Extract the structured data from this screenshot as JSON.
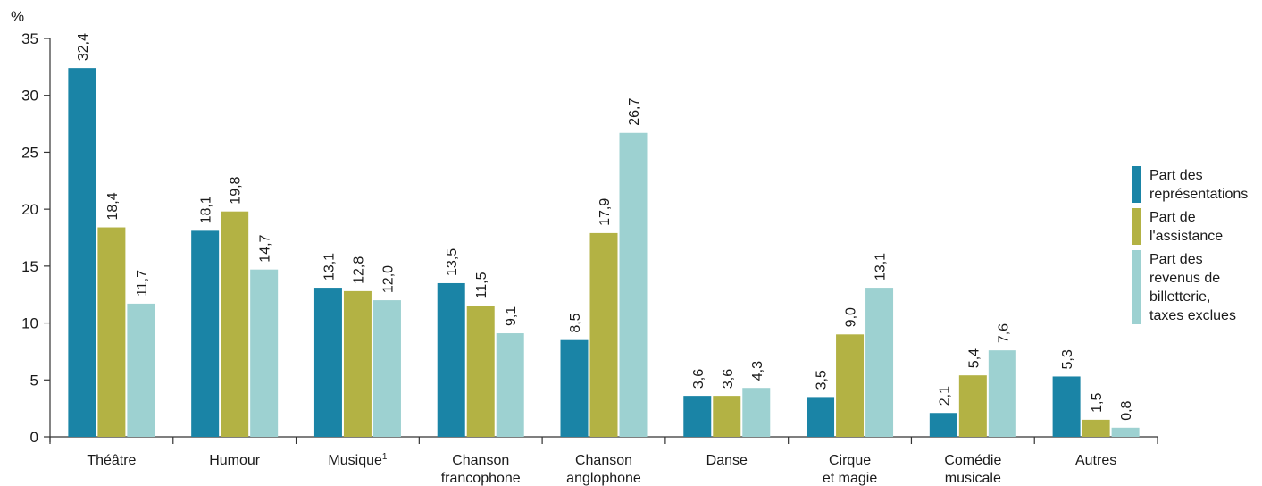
{
  "chart_data": {
    "type": "bar",
    "ylabel": "%",
    "ylim": [
      0,
      35
    ],
    "yticks": [
      0,
      5,
      10,
      15,
      20,
      25,
      30,
      35
    ],
    "grid": false,
    "legend_position": "right",
    "categories": [
      [
        "Théâtre"
      ],
      [
        "Humour"
      ],
      [
        "Musique",
        "1"
      ],
      [
        "Chanson",
        "francophone"
      ],
      [
        "Chanson",
        "anglophone"
      ],
      [
        "Danse"
      ],
      [
        "Cirque",
        "et magie"
      ],
      [
        "Comédie",
        "musicale"
      ],
      [
        "Autres"
      ]
    ],
    "series": [
      {
        "name": [
          "Part des",
          "représentations"
        ],
        "color": "#1a84a6",
        "values": [
          32.4,
          18.1,
          13.1,
          13.5,
          8.5,
          3.6,
          3.5,
          2.1,
          5.3
        ],
        "labels": [
          "32,4",
          "18,1",
          "13,1",
          "13,5",
          "8,5",
          "3,6",
          "3,5",
          "2,1",
          "5,3"
        ]
      },
      {
        "name": [
          "Part de",
          "l'assistance"
        ],
        "color": "#b3b244",
        "values": [
          18.4,
          19.8,
          12.8,
          11.5,
          17.9,
          3.6,
          9.0,
          5.4,
          1.5
        ],
        "labels": [
          "18,4",
          "19,8",
          "12,8",
          "11,5",
          "17,9",
          "3,6",
          "9,0",
          "5,4",
          "1,5"
        ]
      },
      {
        "name": [
          "Part des",
          "revenus de",
          "billetterie,",
          "taxes exclues"
        ],
        "color": "#9dd1d1",
        "values": [
          11.7,
          14.7,
          12.0,
          9.1,
          26.7,
          4.3,
          13.1,
          7.6,
          0.8
        ],
        "labels": [
          "11,7",
          "14,7",
          "12,0",
          "9,1",
          "26,7",
          "4,3",
          "13,1",
          "7,6",
          "0,8"
        ]
      }
    ]
  }
}
